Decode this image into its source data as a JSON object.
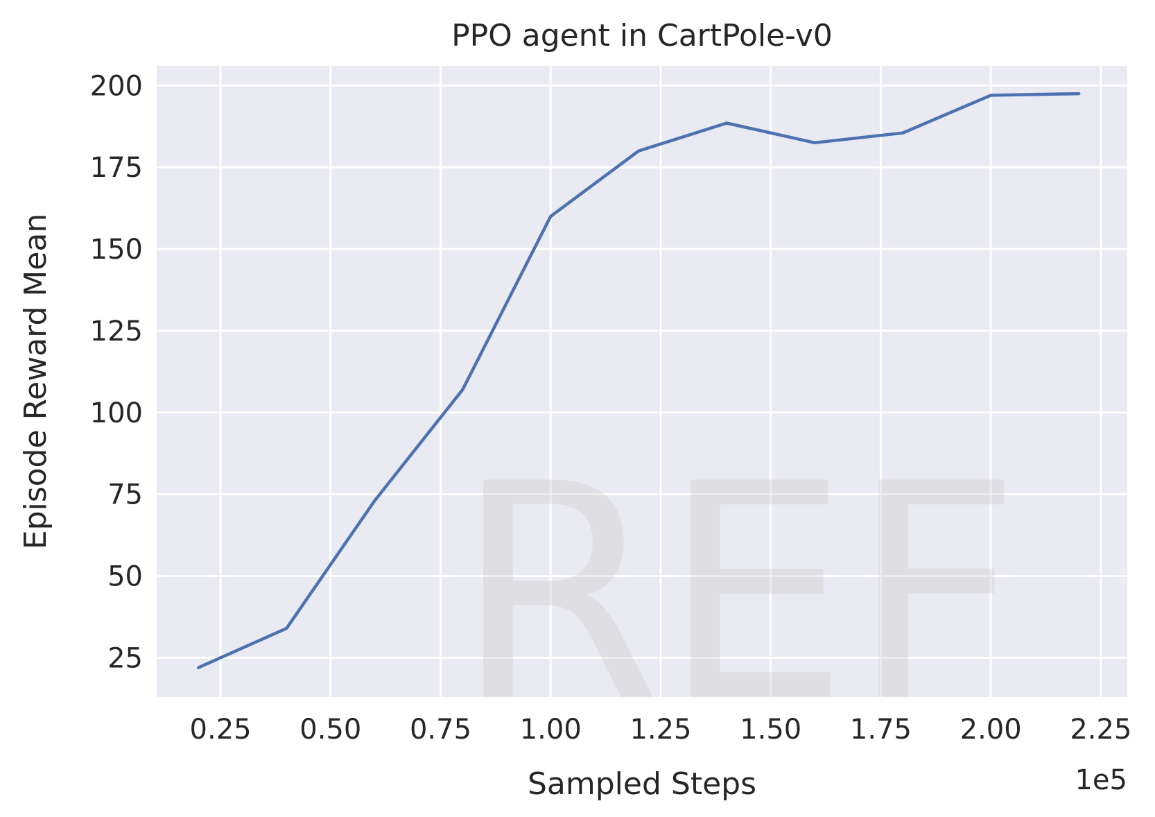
{
  "chart_data": {
    "type": "line",
    "title": "PPO agent in CartPole-v0",
    "xlabel": "Sampled Steps",
    "ylabel": "Episode Reward Mean",
    "x_offset_label": "1e5",
    "watermark": "REF",
    "xlim": [
      0.105,
      2.31
    ],
    "ylim": [
      13,
      206
    ],
    "x_ticks": [
      0.25,
      0.5,
      0.75,
      1.0,
      1.25,
      1.5,
      1.75,
      2.0,
      2.25
    ],
    "x_tick_labels": [
      "0.25",
      "0.50",
      "0.75",
      "1.00",
      "1.25",
      "1.50",
      "1.75",
      "2.00",
      "2.25"
    ],
    "y_ticks": [
      25,
      50,
      75,
      100,
      125,
      150,
      175,
      200
    ],
    "y_tick_labels": [
      "25",
      "50",
      "75",
      "100",
      "125",
      "150",
      "175",
      "200"
    ],
    "grid": true,
    "colors": {
      "background": "#eaeaf2",
      "grid": "#ffffff",
      "line": "#4c72b0"
    },
    "series": [
      {
        "x": [
          0.2,
          0.4,
          0.6,
          0.8,
          1.0,
          1.2,
          1.4,
          1.6,
          1.8,
          2.0,
          2.2
        ],
        "y": [
          22,
          34,
          73,
          107,
          160,
          180,
          188.5,
          182.5,
          185.5,
          197,
          197.5
        ]
      }
    ]
  }
}
